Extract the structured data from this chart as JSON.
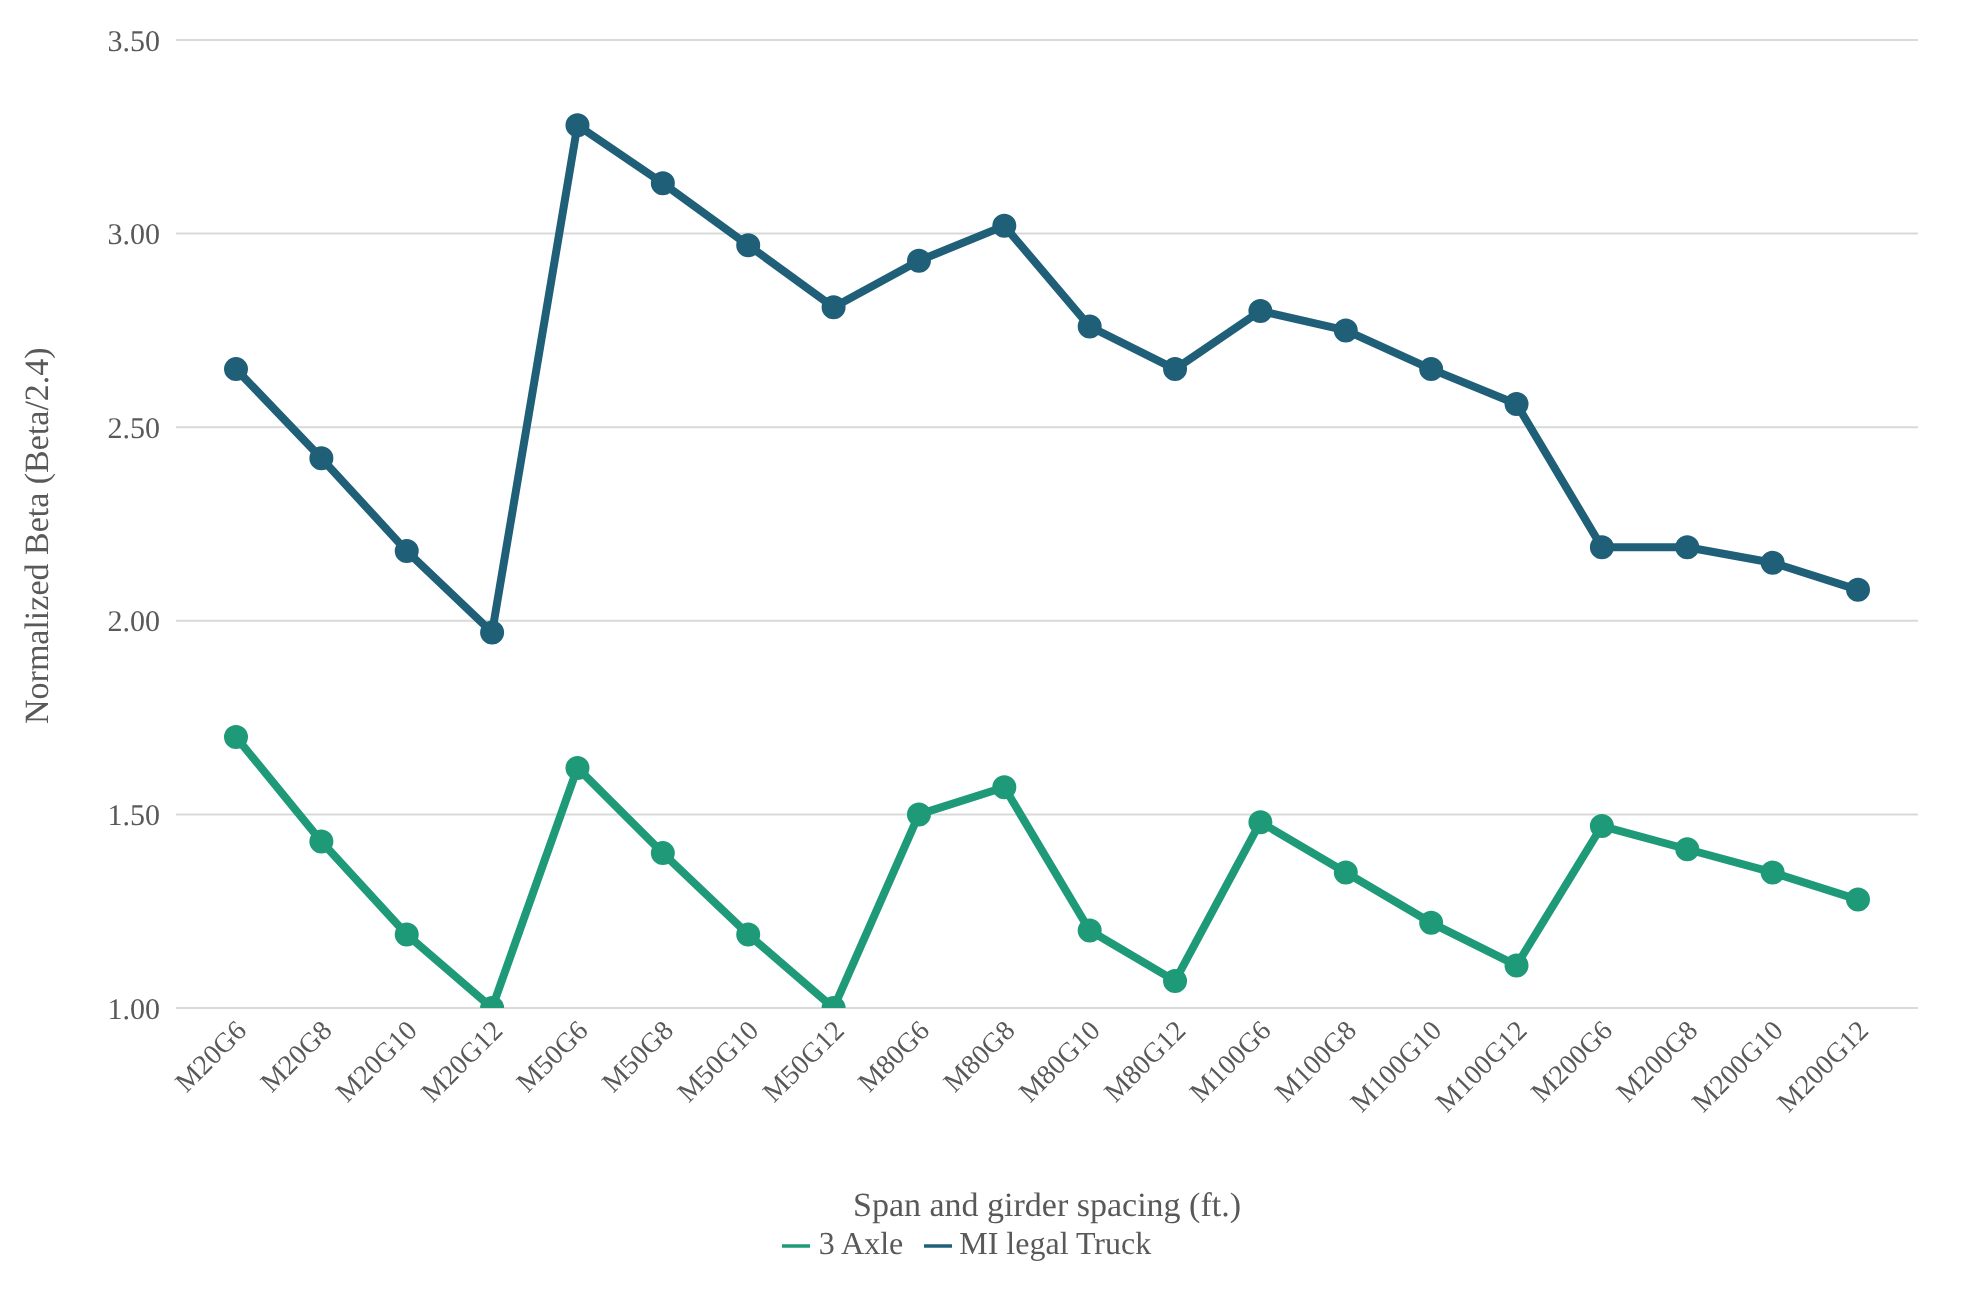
{
  "chart_data": {
    "type": "line",
    "xlabel": "Span and girder spacing (ft.)",
    "ylabel": "Normalized  Beta (Beta/2.4)",
    "categories": [
      "M20G6",
      "M20G8",
      "M20G10",
      "M20G12",
      "M50G6",
      "M50G8",
      "M50G10",
      "M50G12",
      "M80G6",
      "M80G8",
      "M80G10",
      "M80G12",
      "M100G6",
      "M100G8",
      "M100G10",
      "M100G12",
      "M200G6",
      "M200G8",
      "M200G10",
      "M200G12"
    ],
    "series": [
      {
        "name": "3 Axle",
        "color": "#1f9a78",
        "values": [
          1.7,
          1.43,
          1.19,
          1.0,
          1.62,
          1.4,
          1.19,
          1.0,
          1.5,
          1.57,
          1.2,
          1.07,
          1.48,
          1.35,
          1.22,
          1.11,
          1.47,
          1.41,
          1.35,
          1.28
        ]
      },
      {
        "name": "MI legal Truck",
        "color": "#1f5f78",
        "values": [
          2.65,
          2.42,
          2.18,
          1.97,
          3.28,
          3.13,
          2.97,
          2.81,
          2.93,
          3.02,
          2.76,
          2.65,
          2.8,
          2.75,
          2.65,
          2.56,
          2.19,
          2.19,
          2.15,
          2.08
        ]
      }
    ],
    "ylim": [
      1,
      3.5
    ],
    "yticks": [
      {
        "value": 1,
        "label": "1.00"
      },
      {
        "value": 1.5,
        "label": "1.50"
      },
      {
        "value": 2,
        "label": "2.00"
      },
      {
        "value": 2.5,
        "label": "2.50"
      },
      {
        "value": 3,
        "label": "3.00"
      },
      {
        "value": 3.5,
        "label": "3.50"
      }
    ],
    "grid": "y",
    "legend": "bottom",
    "marker": "circle",
    "line_style": "solid"
  }
}
